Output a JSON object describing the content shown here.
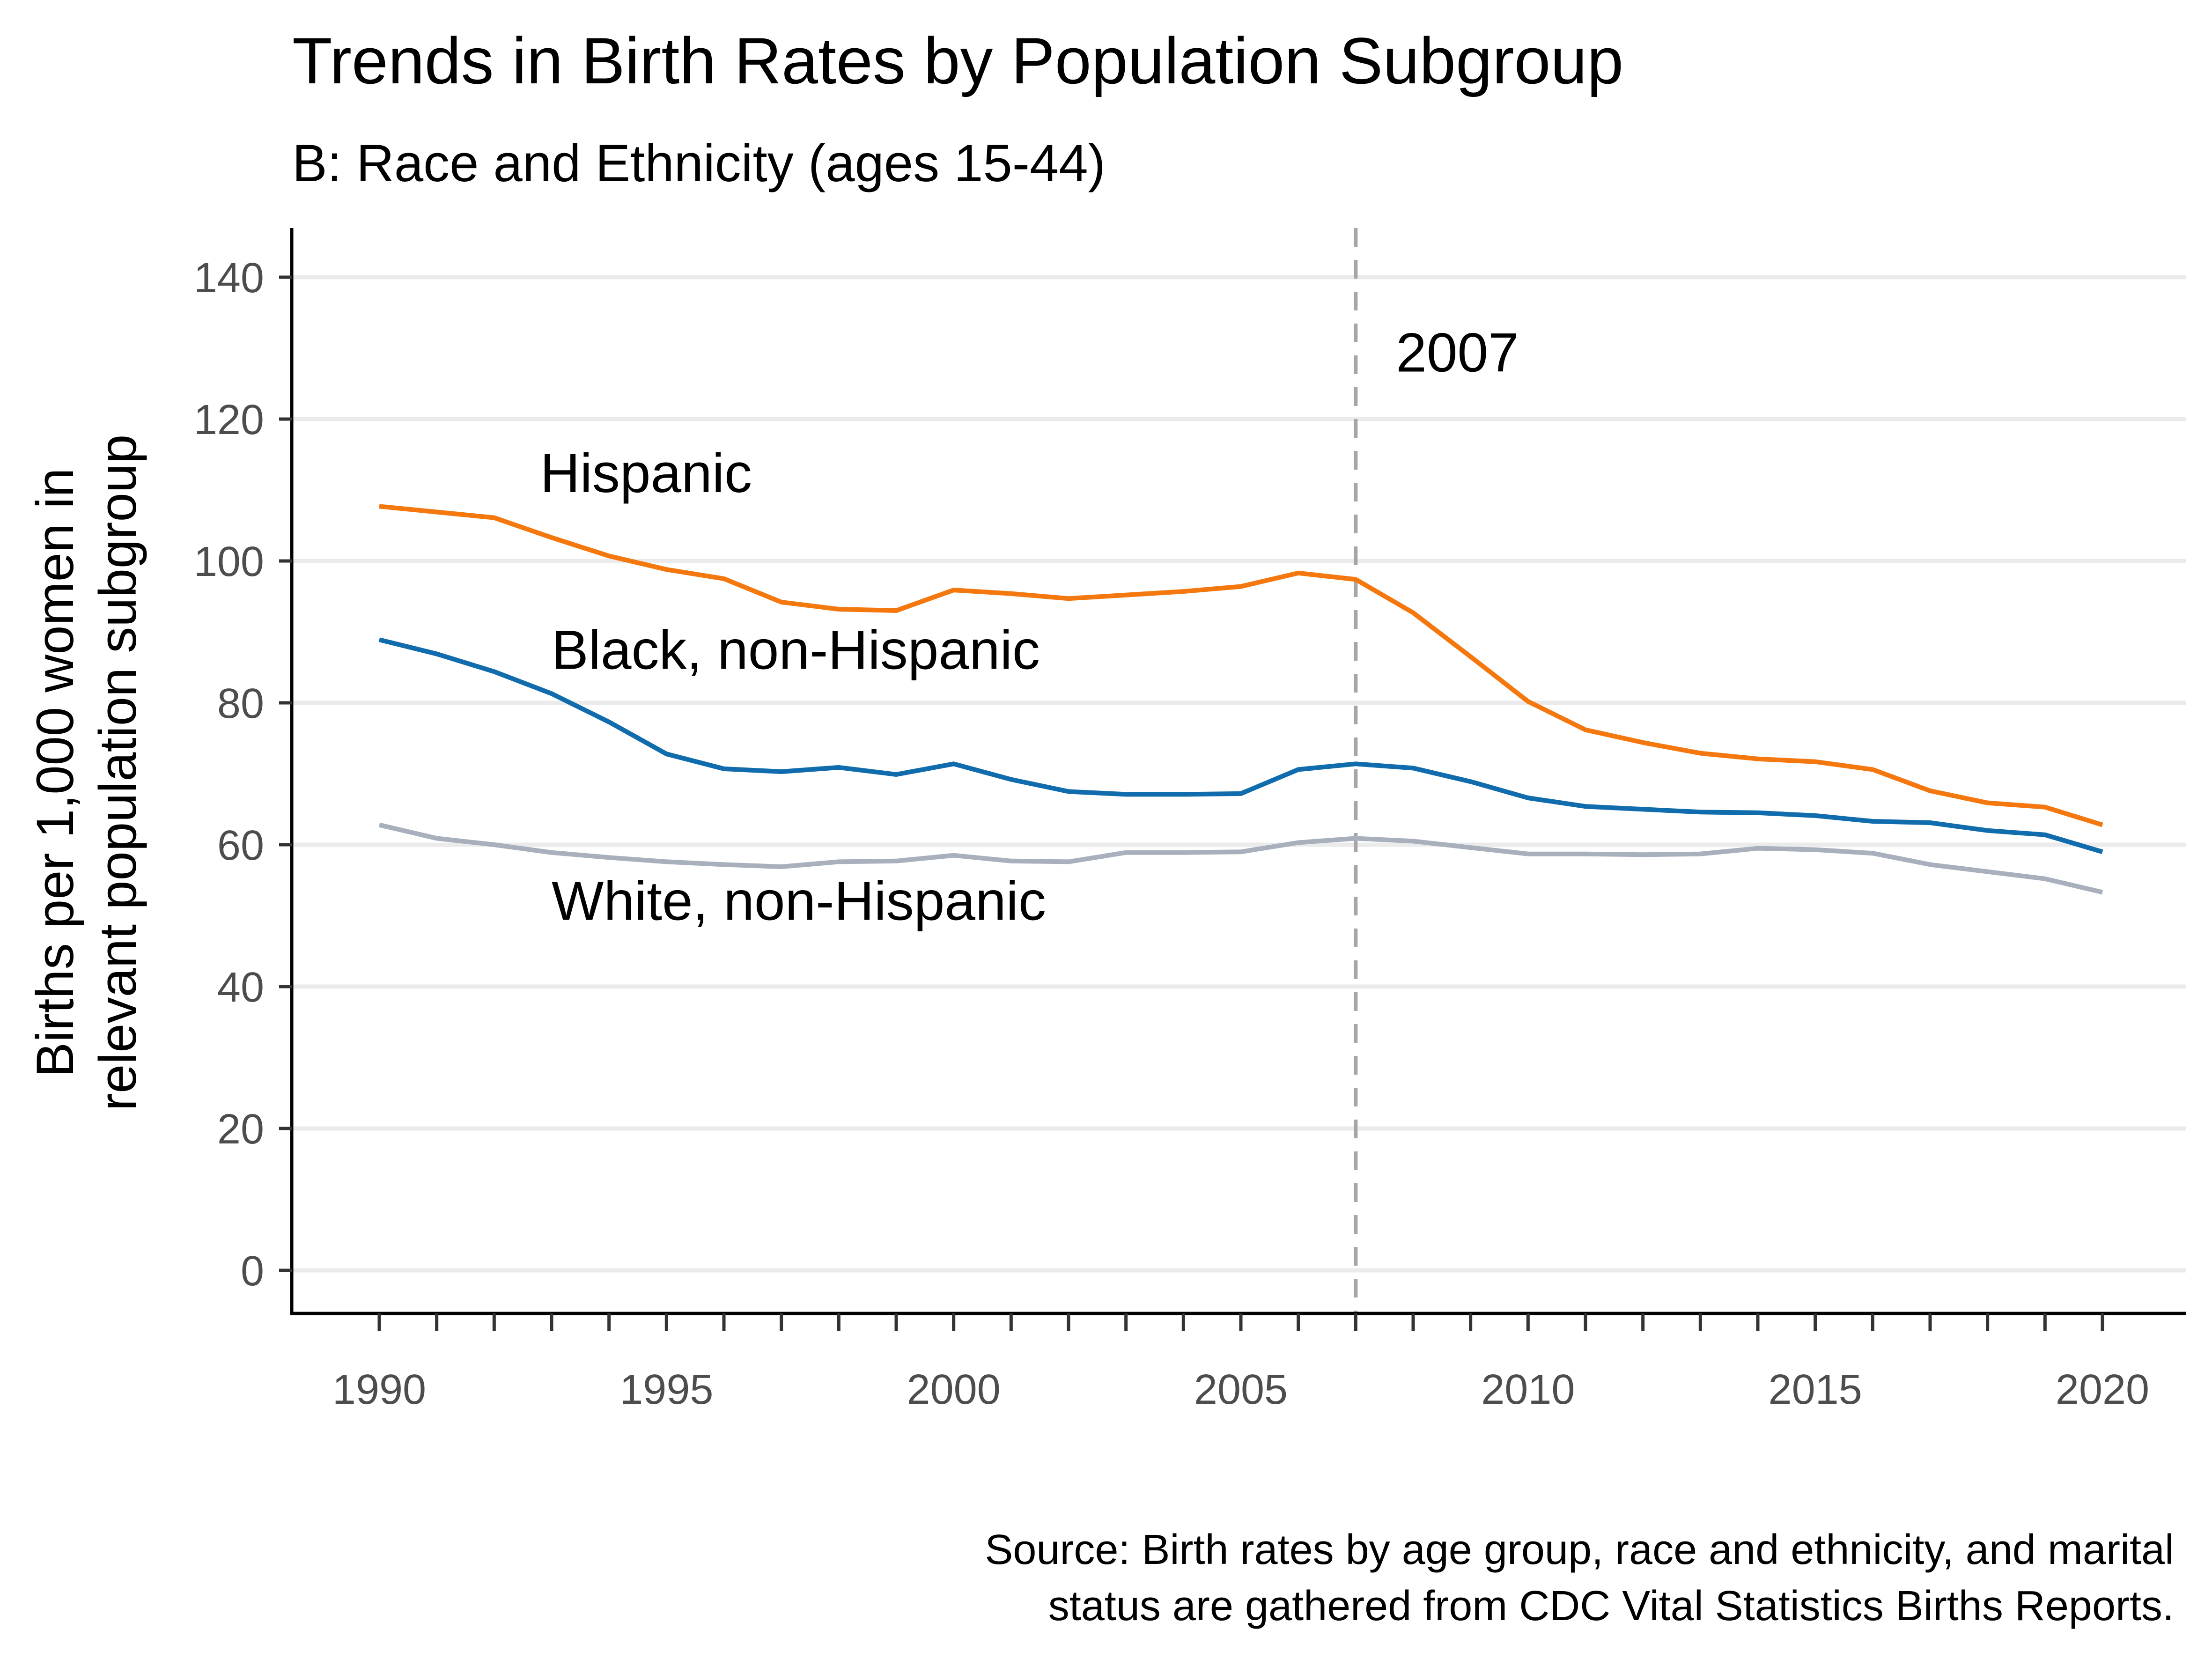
{
  "chart_data": {
    "type": "line",
    "title": "Trends in Birth Rates by Population Subgroup",
    "subtitle": "B: Race and Ethnicity (ages 15-44)",
    "ylabel_lines": [
      "Births per 1,000 women in",
      "relevant population subgroup"
    ],
    "xlabel": "",
    "xlim": [
      1990,
      2020
    ],
    "ylim": [
      0,
      140
    ],
    "x_ticks": [
      1990,
      1995,
      2000,
      2005,
      2010,
      2015,
      2020
    ],
    "y_ticks": [
      0,
      20,
      40,
      60,
      80,
      100,
      120,
      140
    ],
    "grid": "horizontal",
    "x": [
      1990,
      1991,
      1992,
      1993,
      1994,
      1995,
      1996,
      1997,
      1998,
      1999,
      2000,
      2001,
      2002,
      2003,
      2004,
      2005,
      2006,
      2007,
      2008,
      2009,
      2010,
      2011,
      2012,
      2013,
      2014,
      2015,
      2016,
      2017,
      2018,
      2019,
      2020
    ],
    "series": [
      {
        "name": "Hispanic",
        "color": "#f5780f",
        "values": [
          107.7,
          106.9,
          106.1,
          103.3,
          100.7,
          98.8,
          97.5,
          94.2,
          93.2,
          93.0,
          95.9,
          95.4,
          94.7,
          95.2,
          95.7,
          96.4,
          98.3,
          97.4,
          92.7,
          86.5,
          80.2,
          76.2,
          74.4,
          72.9,
          72.1,
          71.7,
          70.6,
          67.6,
          65.9,
          65.3,
          62.8
        ]
      },
      {
        "name": "Black, non-Hispanic",
        "color": "#106cac",
        "values": [
          88.9,
          86.9,
          84.4,
          81.3,
          77.3,
          72.8,
          70.7,
          70.3,
          70.9,
          69.9,
          71.4,
          69.2,
          67.5,
          67.1,
          67.1,
          67.2,
          70.6,
          71.4,
          70.8,
          68.9,
          66.6,
          65.4,
          65.0,
          64.6,
          64.5,
          64.1,
          63.3,
          63.1,
          62.0,
          61.4,
          59.0
        ]
      },
      {
        "name": "White, non-Hispanic",
        "color": "#a8b0bd",
        "values": [
          62.8,
          60.9,
          60.0,
          58.9,
          58.2,
          57.6,
          57.2,
          56.9,
          57.6,
          57.7,
          58.5,
          57.7,
          57.6,
          58.9,
          58.9,
          59.0,
          60.3,
          60.9,
          60.5,
          59.6,
          58.7,
          58.7,
          58.6,
          58.7,
          59.5,
          59.3,
          58.8,
          57.2,
          56.2,
          55.2,
          53.3
        ]
      }
    ],
    "series_labels": [
      {
        "text": "Hispanic",
        "x": 1992.8,
        "y": 109.7
      },
      {
        "text": "Black, non-Hispanic",
        "x": 1993.0,
        "y": 84.8
      },
      {
        "text": "White, non-Hispanic",
        "x": 1993.0,
        "y": 49.4
      }
    ],
    "reference_line": {
      "x": 2007,
      "label": "2007",
      "label_x": 2007.7,
      "label_y": 126.7,
      "color": "#a6a6a6"
    },
    "caption_lines": [
      "Source: Birth rates by age group, race and ethnicity, and marital",
      "status are gathered from CDC Vital Statistics Births Reports."
    ]
  }
}
